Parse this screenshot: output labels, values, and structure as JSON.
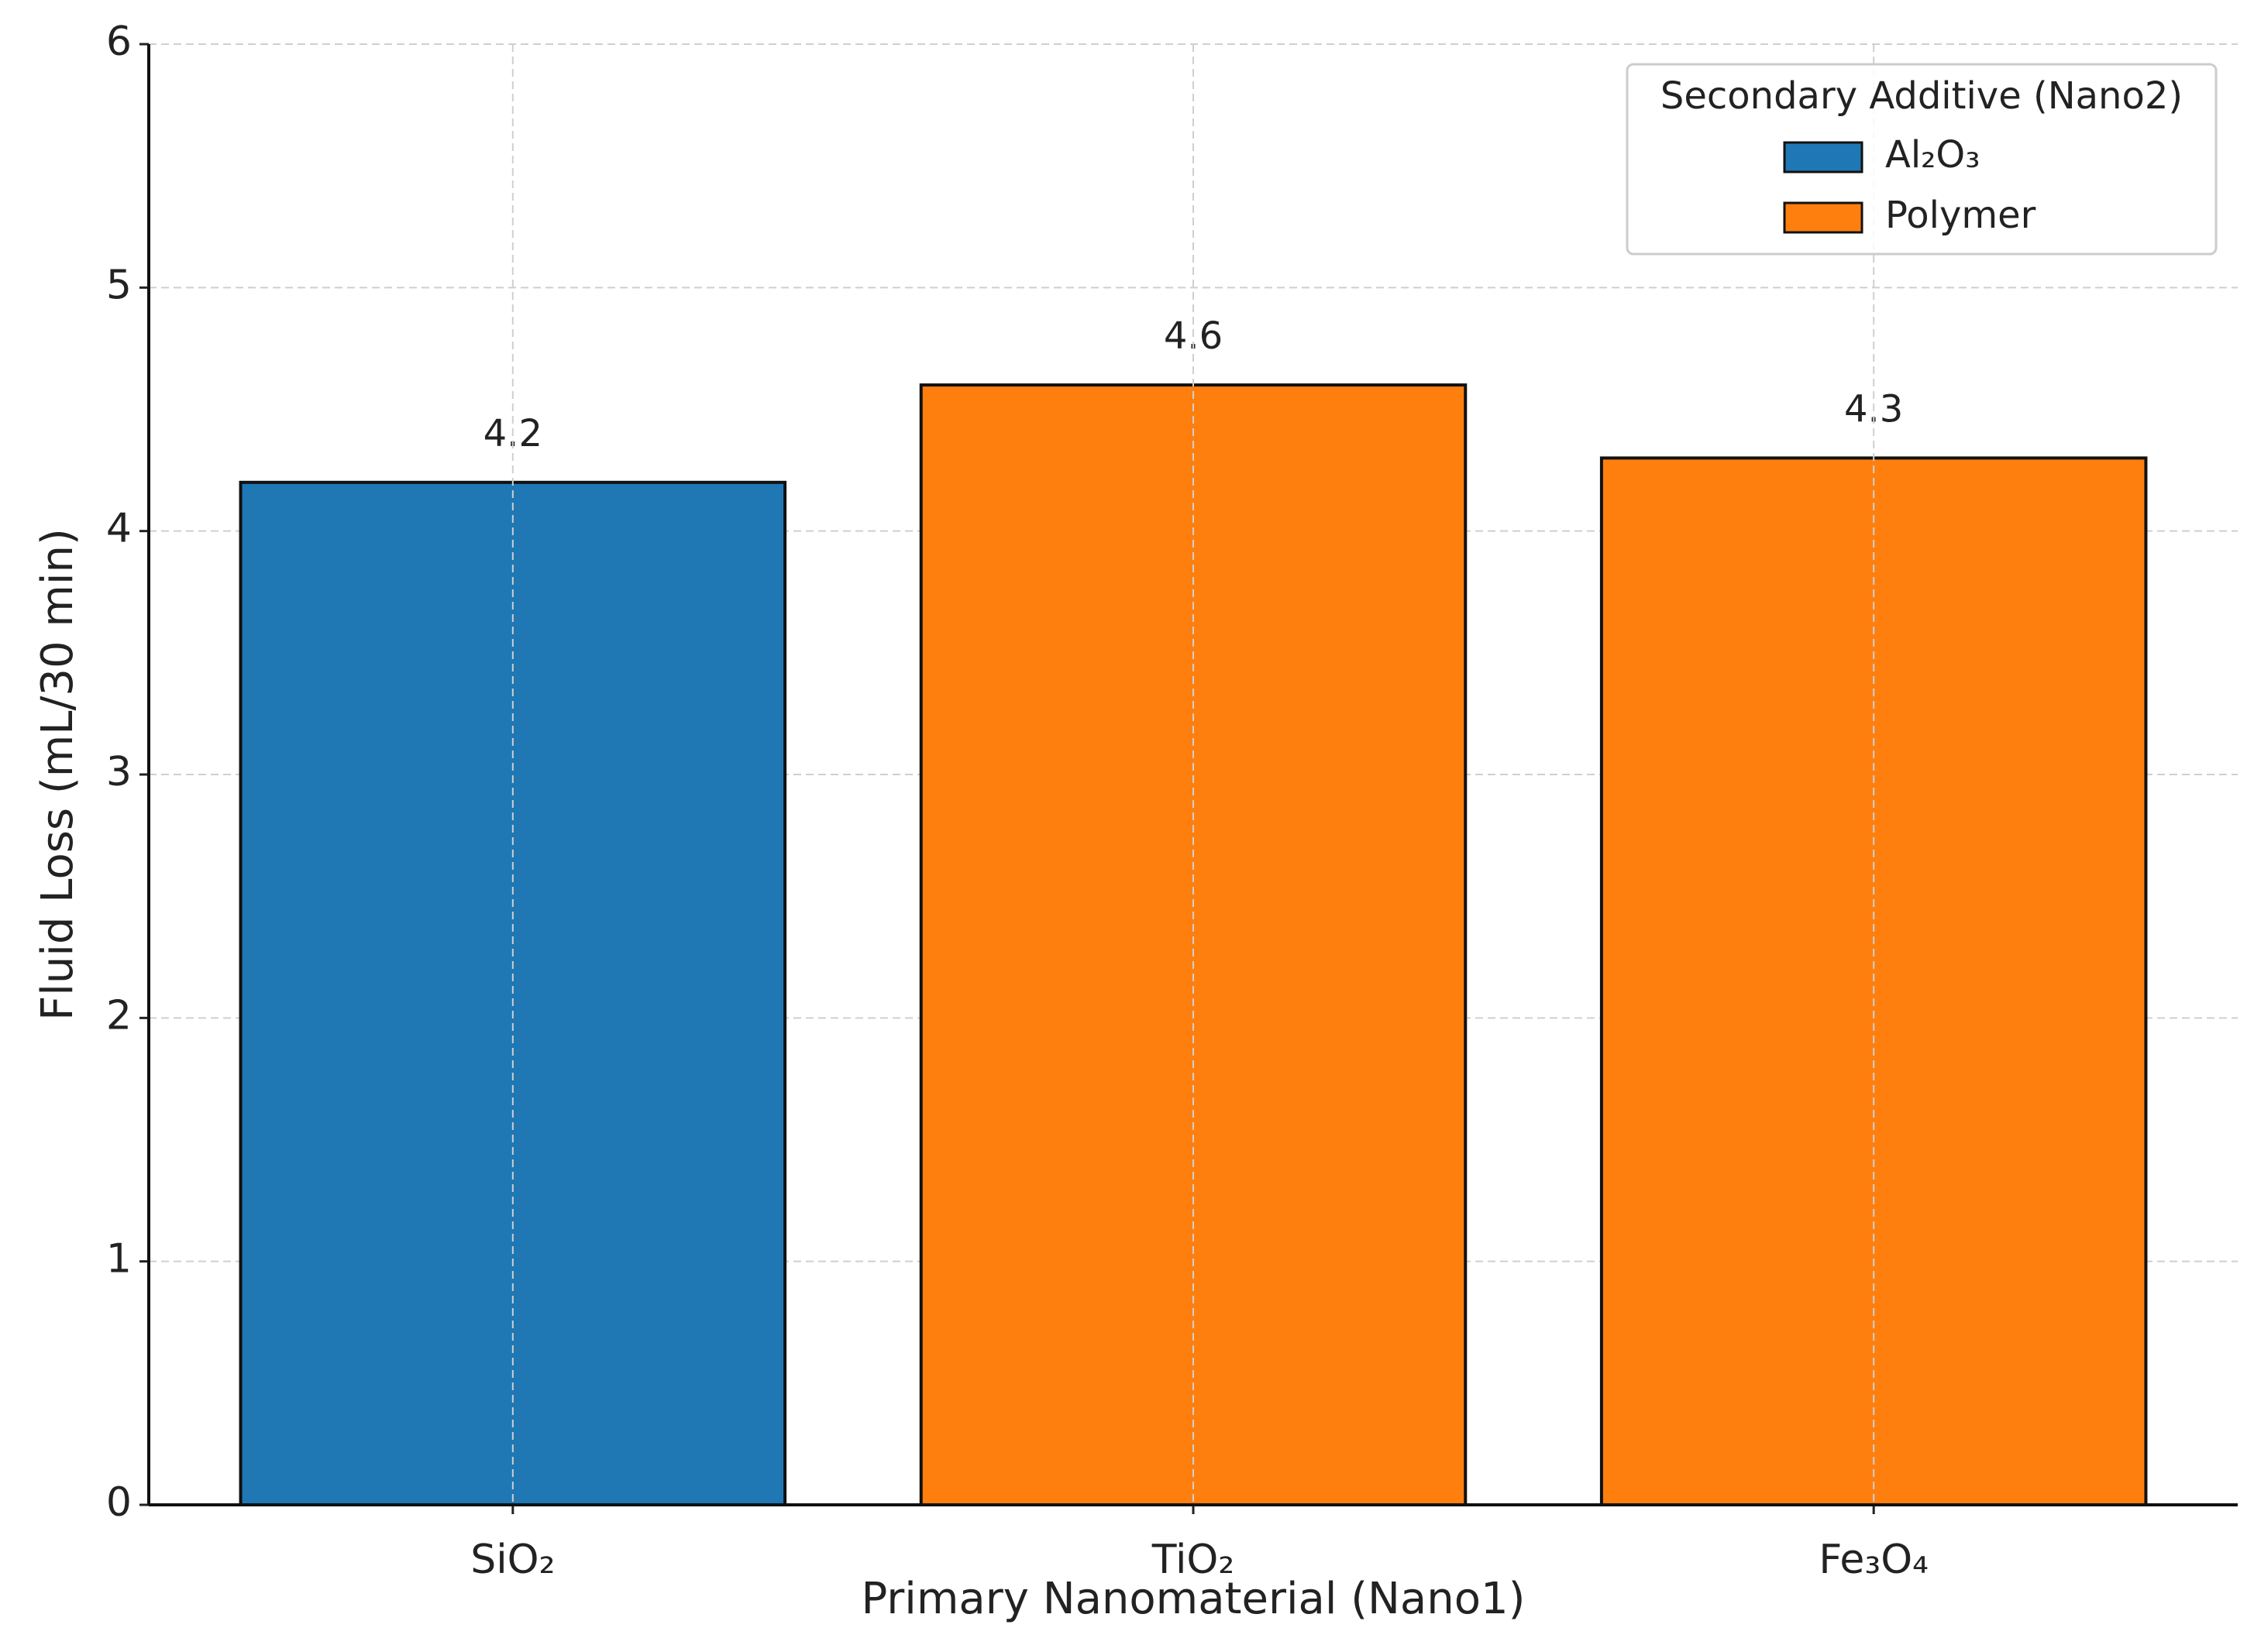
{
  "chart_data": {
    "type": "bar",
    "categories": [
      "SiO₂",
      "TiO₂",
      "Fe₃O₄"
    ],
    "series": [
      {
        "name": "Al₂O₃",
        "color": "#1f77b4",
        "values": [
          4.2,
          null,
          null
        ]
      },
      {
        "name": "Polymer",
        "color": "#ff7f0e",
        "values": [
          null,
          4.6,
          4.3
        ]
      }
    ],
    "xlabel": "Primary Nanomaterial (Nano1)",
    "ylabel": "Fluid Loss (mL/30 min)",
    "legend_title": "Secondary Additive (Nano2)",
    "legend": "upper right",
    "ylim": [
      0,
      6
    ],
    "yticks": [
      0,
      1,
      2,
      3,
      4,
      5,
      6
    ],
    "grid": true
  }
}
